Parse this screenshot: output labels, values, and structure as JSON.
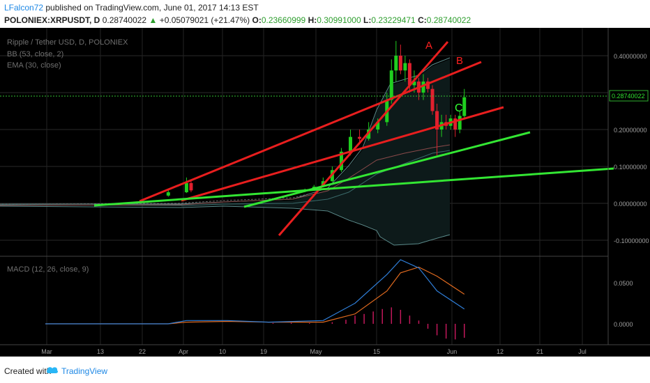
{
  "header": {
    "author": "LFalcon72",
    "published_text": " published on TradingView.com, June 01, 2017 14:13 EST",
    "symbol": "POLONIEX:XRPUSDT, D",
    "last": "0.28740022",
    "change_arrow": "▲",
    "change": "+0.05079021 (+21.47%)",
    "o_label": "O:",
    "o_value": "0.23660999",
    "h_label": "H:",
    "h_value": "0.30991000",
    "l_label": "L:",
    "l_value": "0.23229471",
    "c_label": "C:",
    "c_value": "0.28740022"
  },
  "legend": {
    "title": "Ripple / Tether USD, D, POLONIEX",
    "bb": "BB (53, close, 2)",
    "ema": "EMA (30, close)",
    "macd": "MACD (12, 26, close, 9)"
  },
  "price_axis": {
    "ticks": [
      "0.40000000",
      "0.30000000",
      "0.20000000",
      "0.10000000",
      "0.00000000",
      "-0.10000000"
    ],
    "tick_values": [
      0.4,
      0.3,
      0.2,
      0.1,
      0.0,
      -0.1
    ],
    "last_price_label": "0.28740022",
    "last_price": 0.2874
  },
  "macd_axis": {
    "ticks": [
      "0.0500",
      "0.0000"
    ],
    "tick_values": [
      0.05,
      0.0
    ]
  },
  "time_axis": {
    "ticks": [
      "Mar",
      "13",
      "22",
      "Apr",
      "10",
      "19",
      "May",
      "15",
      "Jun",
      "12",
      "21",
      "Jul"
    ]
  },
  "annotations": [
    {
      "label": "A",
      "color": "#ff2020"
    },
    {
      "label": "B",
      "color": "#ff2020"
    },
    {
      "label": "C",
      "color": "#33ff33"
    }
  ],
  "colors": {
    "up": "#1fcf1f",
    "down": "#e0202e",
    "red_line": "#e81e1e",
    "green_line": "#33e633",
    "macd": "#2f7ed8",
    "signal": "#e06a1f",
    "hist": "#c2185b"
  },
  "chart_data": {
    "type": "candlestick",
    "title": "Ripple / Tether USD, D, POLONIEX",
    "ylim": [
      -0.12,
      0.45
    ],
    "candles": [
      {
        "date": "2017-03-28",
        "open": 0.021,
        "high": 0.038,
        "low": 0.018,
        "close": 0.03
      },
      {
        "date": "2017-04-01",
        "open": 0.03,
        "high": 0.07,
        "low": 0.028,
        "close": 0.055
      },
      {
        "date": "2017-04-02",
        "open": 0.055,
        "high": 0.06,
        "low": 0.03,
        "close": 0.035
      },
      {
        "date": "2017-04-27",
        "open": 0.032,
        "high": 0.04,
        "low": 0.03,
        "close": 0.037
      },
      {
        "date": "2017-04-29",
        "open": 0.037,
        "high": 0.05,
        "low": 0.036,
        "close": 0.045
      },
      {
        "date": "2017-05-01",
        "open": 0.045,
        "high": 0.07,
        "low": 0.043,
        "close": 0.06
      },
      {
        "date": "2017-05-03",
        "open": 0.06,
        "high": 0.1,
        "low": 0.058,
        "close": 0.09
      },
      {
        "date": "2017-05-05",
        "open": 0.09,
        "high": 0.15,
        "low": 0.085,
        "close": 0.14
      },
      {
        "date": "2017-05-07",
        "open": 0.14,
        "high": 0.2,
        "low": 0.13,
        "close": 0.18
      },
      {
        "date": "2017-05-09",
        "open": 0.18,
        "high": 0.2,
        "low": 0.16,
        "close": 0.175
      },
      {
        "date": "2017-05-11",
        "open": 0.175,
        "high": 0.22,
        "low": 0.17,
        "close": 0.2
      },
      {
        "date": "2017-05-13",
        "open": 0.2,
        "high": 0.23,
        "low": 0.19,
        "close": 0.22
      },
      {
        "date": "2017-05-15",
        "open": 0.22,
        "high": 0.3,
        "low": 0.21,
        "close": 0.28
      },
      {
        "date": "2017-05-16",
        "open": 0.28,
        "high": 0.39,
        "low": 0.27,
        "close": 0.36
      },
      {
        "date": "2017-05-17",
        "open": 0.36,
        "high": 0.44,
        "low": 0.33,
        "close": 0.4
      },
      {
        "date": "2017-05-18",
        "open": 0.4,
        "high": 0.43,
        "low": 0.35,
        "close": 0.36
      },
      {
        "date": "2017-05-19",
        "open": 0.36,
        "high": 0.4,
        "low": 0.33,
        "close": 0.38
      },
      {
        "date": "2017-05-20",
        "open": 0.38,
        "high": 0.39,
        "low": 0.3,
        "close": 0.32
      },
      {
        "date": "2017-05-21",
        "open": 0.32,
        "high": 0.36,
        "low": 0.3,
        "close": 0.33
      },
      {
        "date": "2017-05-22",
        "open": 0.33,
        "high": 0.34,
        "low": 0.28,
        "close": 0.3
      },
      {
        "date": "2017-05-23",
        "open": 0.3,
        "high": 0.35,
        "low": 0.28,
        "close": 0.33
      },
      {
        "date": "2017-05-24",
        "open": 0.33,
        "high": 0.34,
        "low": 0.3,
        "close": 0.31
      },
      {
        "date": "2017-05-25",
        "open": 0.31,
        "high": 0.32,
        "low": 0.24,
        "close": 0.25
      },
      {
        "date": "2017-05-26",
        "open": 0.25,
        "high": 0.27,
        "low": 0.13,
        "close": 0.2
      },
      {
        "date": "2017-05-27",
        "open": 0.2,
        "high": 0.24,
        "low": 0.18,
        "close": 0.22
      },
      {
        "date": "2017-05-28",
        "open": 0.22,
        "high": 0.24,
        "low": 0.2,
        "close": 0.21
      },
      {
        "date": "2017-05-29",
        "open": 0.21,
        "high": 0.24,
        "low": 0.2,
        "close": 0.23
      },
      {
        "date": "2017-05-30",
        "open": 0.23,
        "high": 0.24,
        "low": 0.18,
        "close": 0.2
      },
      {
        "date": "2017-05-31",
        "open": 0.2,
        "high": 0.25,
        "low": 0.19,
        "close": 0.237
      },
      {
        "date": "2017-06-01",
        "open": 0.2366,
        "high": 0.3099,
        "low": 0.2323,
        "close": 0.2874
      }
    ],
    "macd": [
      {
        "date": "2017-03-01",
        "macd": 0.0,
        "signal": 0.0
      },
      {
        "date": "2017-03-28",
        "macd": 0.0,
        "signal": 0.0
      },
      {
        "date": "2017-04-01",
        "macd": 0.004,
        "signal": 0.002
      },
      {
        "date": "2017-04-10",
        "macd": 0.004,
        "signal": 0.003
      },
      {
        "date": "2017-04-19",
        "macd": 0.002,
        "signal": 0.002
      },
      {
        "date": "2017-05-01",
        "macd": 0.004,
        "signal": 0.002
      },
      {
        "date": "2017-05-08",
        "macd": 0.025,
        "signal": 0.012
      },
      {
        "date": "2017-05-15",
        "macd": 0.06,
        "signal": 0.04
      },
      {
        "date": "2017-05-18",
        "macd": 0.078,
        "signal": 0.062
      },
      {
        "date": "2017-05-22",
        "macd": 0.068,
        "signal": 0.069
      },
      {
        "date": "2017-05-26",
        "macd": 0.04,
        "signal": 0.058
      },
      {
        "date": "2017-06-01",
        "macd": 0.018,
        "signal": 0.036
      }
    ]
  }
}
